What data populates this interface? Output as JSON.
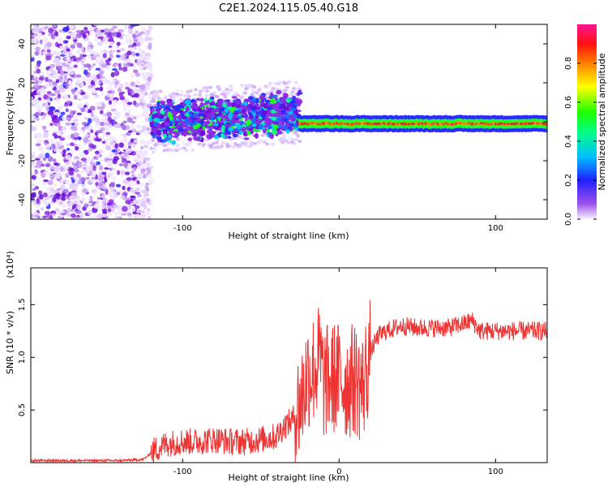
{
  "title": "C2E1.2024.115.05.40.G18",
  "chart_data": [
    {
      "type": "heatmap",
      "xlabel": "Height of straight line (km)",
      "ylabel": "Frequency (Hz)",
      "xlim": [
        -197,
        133
      ],
      "ylim": [
        -50,
        50
      ],
      "x_ticks": [
        -100,
        0,
        100
      ],
      "x_tick_labels": [
        "-100",
        "",
        "100"
      ],
      "y_ticks": [
        -40,
        -20,
        0,
        20,
        40
      ],
      "y_tick_labels": [
        "-40",
        "-20",
        "0",
        "20",
        "40"
      ],
      "colorbar": {
        "label": "Normalized spectral amplitude",
        "range": [
          0,
          1
        ],
        "ticks": [
          0.0,
          0.2,
          0.4,
          0.6,
          0.8
        ],
        "tick_labels": [
          "0.0",
          "0.2",
          "0.4",
          "0.6",
          "0.8"
        ],
        "colors": [
          "#f4ecff",
          "#8a2be2",
          "#1a1aff",
          "#00e0ff",
          "#00ff40",
          "#ffff00",
          "#ff8000",
          "#ff0000",
          "#ff1493"
        ]
      },
      "regions": [
        {
          "x_range": [
            -197,
            -120
          ],
          "freq_range": [
            -50,
            50
          ],
          "amplitude": 0.1,
          "pattern": "scattered noise"
        },
        {
          "x_range": [
            -120,
            -25
          ],
          "freq_range": [
            -12,
            12
          ],
          "amplitude": 0.3,
          "pattern": "noisy band drifting upward"
        },
        {
          "x_range": [
            -25,
            133
          ],
          "freq_center": -1,
          "freq_halfwidth": 2,
          "amplitude": 0.9,
          "pattern": "narrow stable line"
        }
      ]
    },
    {
      "type": "line",
      "xlabel": "Height of straight line (km)",
      "ylabel": "SNR (10 * v/v)",
      "y_multiplier": "(x10⁴)",
      "xlim": [
        -197,
        133
      ],
      "ylim": [
        0,
        1.85
      ],
      "x_ticks": [
        -100,
        0,
        100
      ],
      "x_tick_labels": [
        "-100",
        "0",
        "100"
      ],
      "y_ticks": [
        0.5,
        1.0,
        1.5
      ],
      "y_tick_labels": [
        "0.5",
        "1.0",
        "1.5"
      ],
      "line_color": "#ee3333",
      "series": [
        {
          "x": [
            -197,
            -180,
            -160,
            -140,
            -125,
            -118,
            -110,
            -100,
            -90,
            -80,
            -70,
            -60,
            -50,
            -40,
            -35,
            -30,
            -25,
            -20,
            -15,
            -12,
            -10,
            -5,
            0,
            5,
            10,
            15,
            20,
            25,
            30,
            40,
            50,
            60,
            70,
            80,
            85,
            90,
            100,
            110,
            120,
            133
          ],
          "y": [
            0.02,
            0.02,
            0.02,
            0.02,
            0.03,
            0.12,
            0.18,
            0.2,
            0.2,
            0.22,
            0.2,
            0.2,
            0.22,
            0.25,
            0.35,
            0.4,
            0.55,
            0.85,
            0.9,
            1.0,
            0.75,
            0.8,
            0.8,
            0.75,
            0.8,
            0.7,
            1.05,
            1.2,
            1.25,
            1.3,
            1.28,
            1.28,
            1.28,
            1.32,
            1.35,
            1.25,
            1.25,
            1.25,
            1.25,
            1.25
          ]
        }
      ]
    }
  ]
}
